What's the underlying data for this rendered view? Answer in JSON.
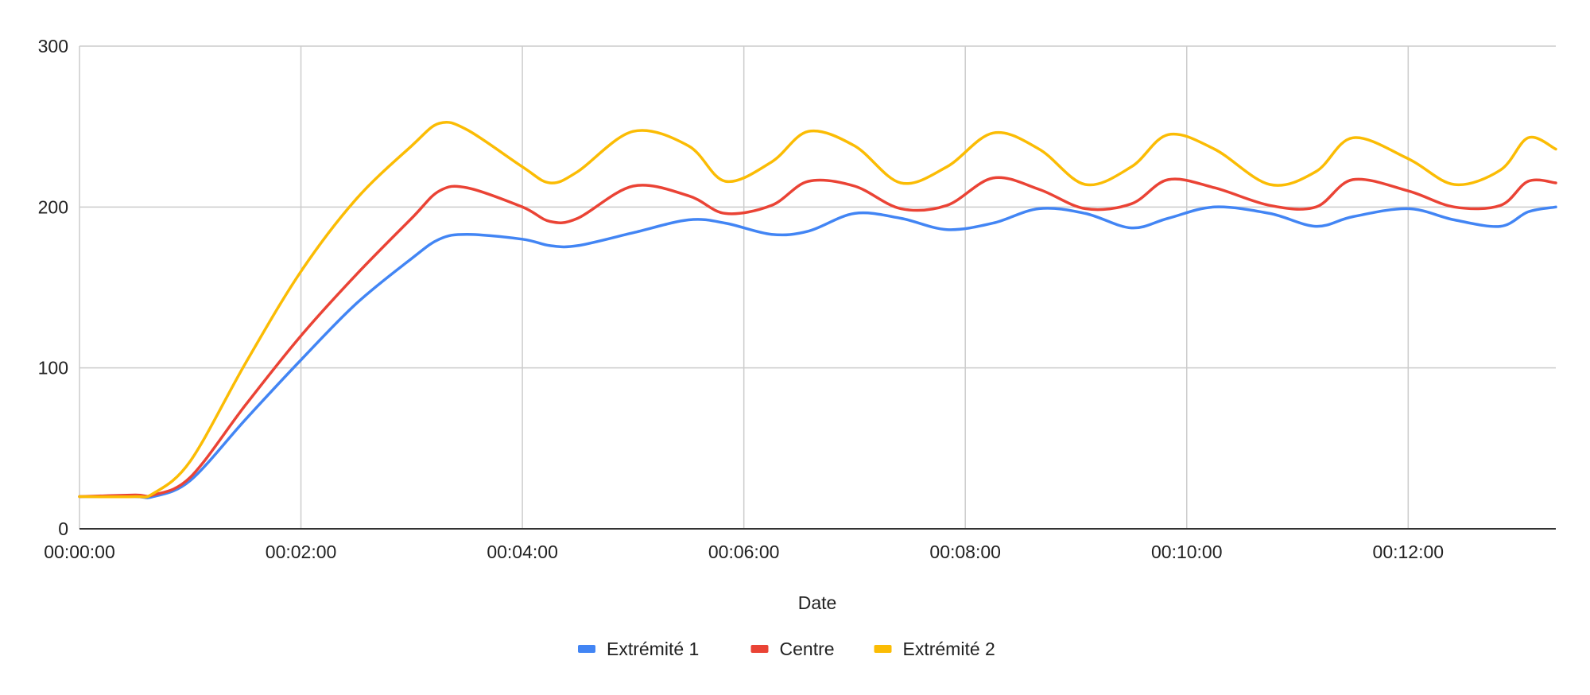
{
  "chart_data": {
    "type": "line",
    "title": "",
    "xlabel": "Date",
    "ylabel": "",
    "x_unit": "hh:mm:ss",
    "xlim": [
      "00:00:00",
      "00:13:20"
    ],
    "ylim": [
      0,
      300
    ],
    "x_ticks": [
      "00:00:00",
      "00:02:00",
      "00:04:00",
      "00:06:00",
      "00:08:00",
      "00:10:00",
      "00:12:00"
    ],
    "y_ticks": [
      0,
      100,
      200,
      300
    ],
    "grid": true,
    "legend_position": "bottom",
    "x": [
      "00:00:00",
      "00:00:30",
      "00:00:40",
      "00:01:00",
      "00:01:30",
      "00:02:00",
      "00:02:30",
      "00:03:00",
      "00:03:15",
      "00:03:30",
      "00:04:00",
      "00:04:15",
      "00:04:30",
      "00:05:00",
      "00:05:30",
      "00:05:50",
      "00:06:15",
      "00:06:35",
      "00:07:00",
      "00:07:25",
      "00:07:50",
      "00:08:15",
      "00:08:40",
      "00:09:05",
      "00:09:30",
      "00:09:50",
      "00:10:15",
      "00:10:45",
      "00:11:10",
      "00:11:30",
      "00:12:00",
      "00:12:25",
      "00:12:50",
      "00:13:05",
      "00:13:20"
    ],
    "series": [
      {
        "name": "Extrémité 1",
        "color": "#4285F4",
        "values": [
          20,
          20,
          20,
          30,
          68,
          105,
          140,
          168,
          180,
          183,
          180,
          176,
          176,
          184,
          192,
          190,
          183,
          185,
          196,
          193,
          186,
          190,
          199,
          196,
          187,
          193,
          200,
          196,
          188,
          194,
          199,
          192,
          188,
          197,
          200
        ]
      },
      {
        "name": "Centre",
        "color": "#EA4335",
        "values": [
          20,
          21,
          21,
          32,
          77,
          120,
          158,
          193,
          210,
          212,
          200,
          191,
          193,
          213,
          207,
          196,
          201,
          216,
          213,
          199,
          201,
          218,
          211,
          199,
          202,
          217,
          212,
          201,
          200,
          217,
          210,
          200,
          201,
          216,
          215
        ]
      },
      {
        "name": "Extrémité 2",
        "color": "#FBBC04",
        "values": [
          20,
          20,
          22,
          42,
          103,
          160,
          205,
          238,
          252,
          248,
          225,
          215,
          222,
          247,
          238,
          216,
          228,
          247,
          238,
          215,
          225,
          246,
          236,
          214,
          225,
          245,
          236,
          214,
          222,
          243,
          230,
          214,
          223,
          243,
          236
        ]
      }
    ]
  }
}
